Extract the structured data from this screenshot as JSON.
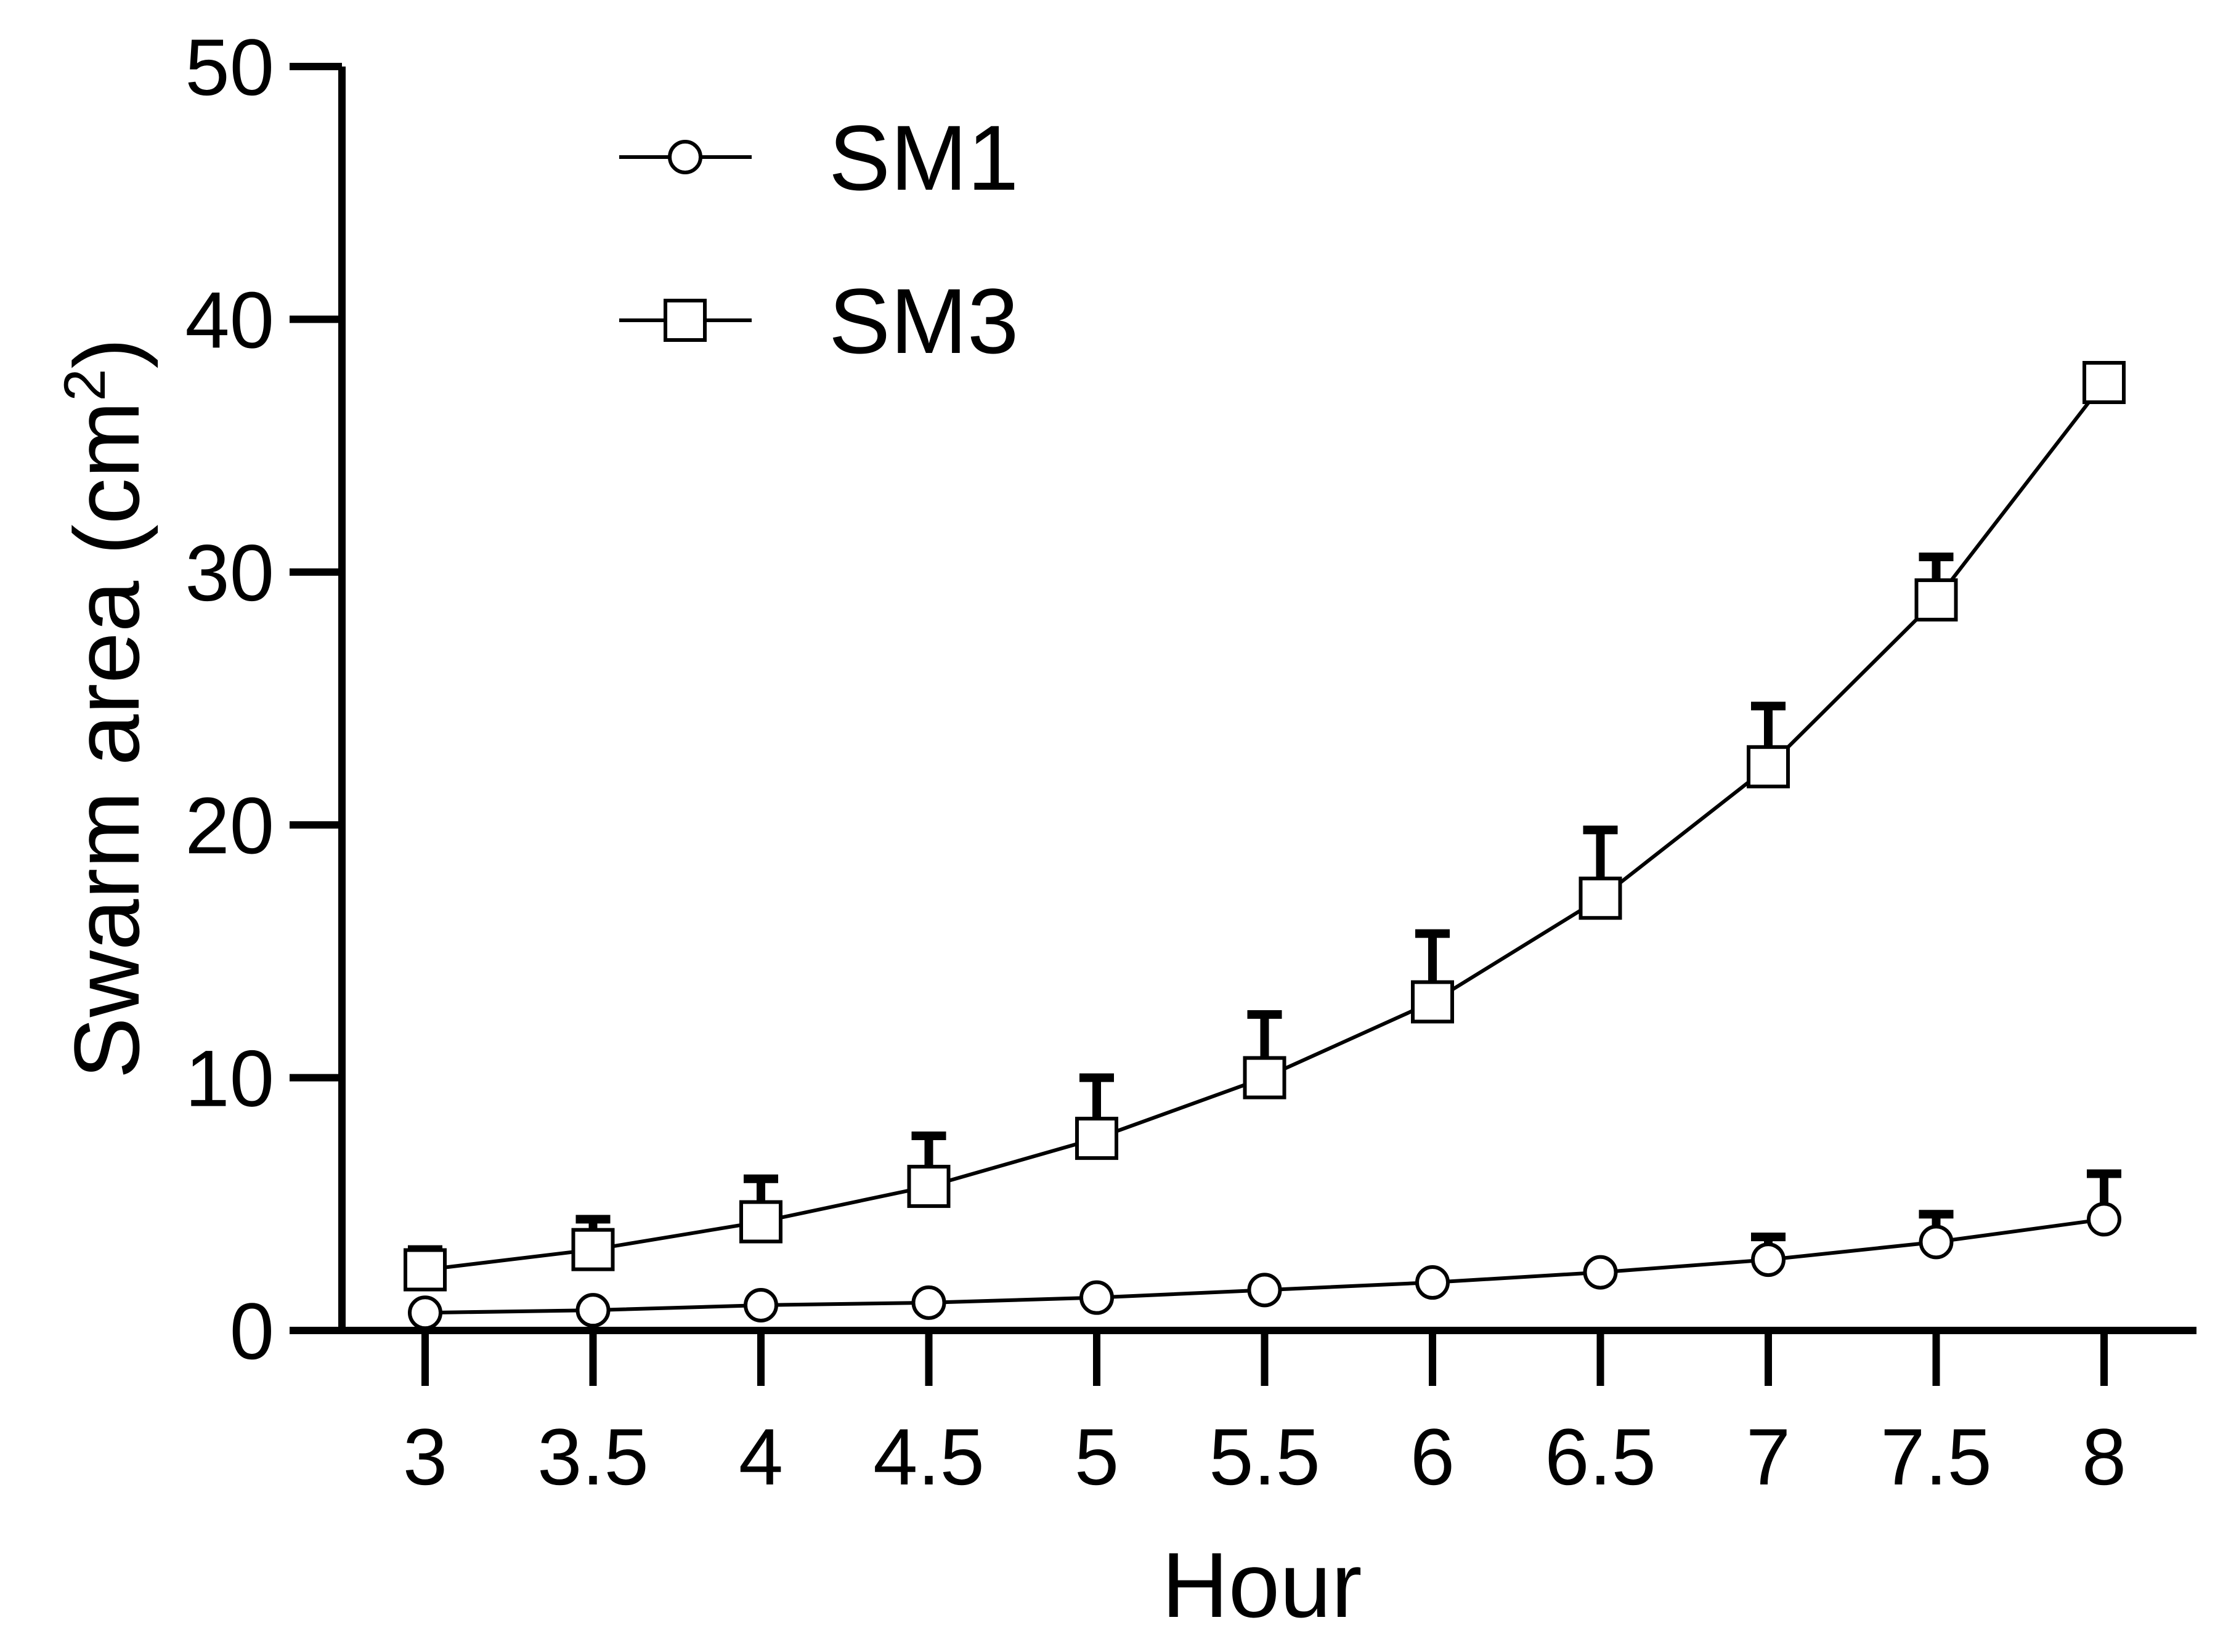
{
  "chart_data": {
    "type": "line",
    "xlabel": "Hour",
    "ylabel": "Swarm area (cm",
    "ylabel_superscript": "2",
    "ylabel_suffix": ")",
    "x": [
      3,
      3.5,
      4,
      4.5,
      5,
      5.5,
      6,
      6.5,
      7,
      7.5,
      8
    ],
    "x_tick_labels": [
      "3",
      "3.5",
      "4",
      "4.5",
      "5",
      "5.5",
      "6",
      "6.5",
      "7",
      "7.5",
      "8"
    ],
    "ylim": [
      0,
      50
    ],
    "y_ticks": [
      0,
      10,
      20,
      30,
      40,
      50
    ],
    "y_tick_labels": [
      "0",
      "10",
      "20",
      "30",
      "40",
      "50"
    ],
    "legend_position": "top-left",
    "grid": false,
    "series": [
      {
        "name": "SM1",
        "marker": "circle",
        "values": [
          0.7,
          0.8,
          1.0,
          1.1,
          1.3,
          1.6,
          1.9,
          2.3,
          2.8,
          3.5,
          4.4
        ],
        "error_upper": [
          0.7,
          0.8,
          1.0,
          1.1,
          1.3,
          1.6,
          1.9,
          2.3,
          3.7,
          4.6,
          6.2
        ]
      },
      {
        "name": "SM3",
        "marker": "square",
        "values": [
          2.4,
          3.2,
          4.3,
          5.7,
          7.6,
          10.0,
          13.0,
          17.1,
          22.3,
          28.9,
          37.5
        ],
        "error_upper": [
          3.2,
          4.4,
          6.0,
          7.7,
          10.0,
          12.5,
          15.7,
          19.8,
          24.7,
          30.6,
          38.1
        ]
      }
    ]
  }
}
